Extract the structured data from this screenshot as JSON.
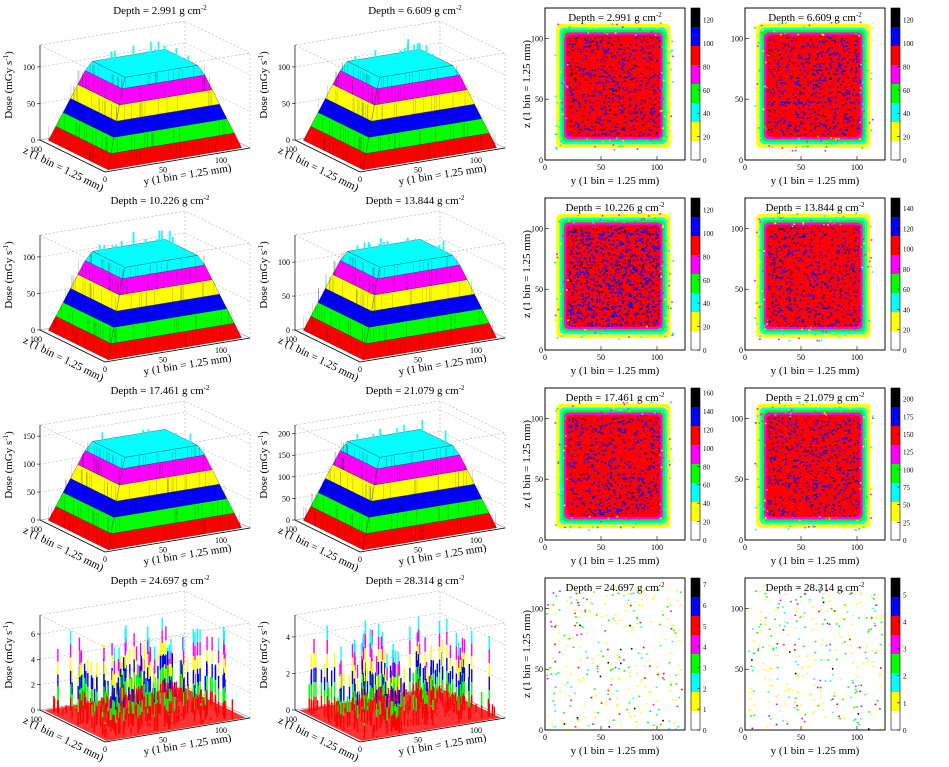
{
  "figure": {
    "palette": [
      "#ffffff",
      "#ffff00",
      "#00ffff",
      "#00ff00",
      "#ff00ff",
      "#ff0000",
      "#0000ff",
      "#000000"
    ],
    "lego_panels": [
      {
        "title": "Depth = 2.991 g cm",
        "title_exponent": "-2",
        "dose_label": "Dose (mGy s",
        "dose_exponent": "-1",
        "dose_label_end": ")",
        "dose_range": [
          0,
          130
        ],
        "dose_ticks": [
          0,
          50,
          100
        ],
        "z_label": "z (1 bin = 1.25 mm)",
        "z_ticks": [
          100
        ],
        "y_label": "y (1 bin = 1.25 mm)",
        "y_ticks": [
          0,
          50,
          100
        ]
      },
      {
        "title": "Depth = 6.609 g cm",
        "title_exponent": "-2",
        "dose_label": "Dose (mGy s",
        "dose_exponent": "-1",
        "dose_label_end": ")",
        "dose_range": [
          0,
          130
        ],
        "dose_ticks": [
          0,
          50,
          100
        ],
        "z_label": "z (1 bin = 1.25 mm)",
        "z_ticks": [
          100
        ],
        "y_label": "y (1 bin = 1.25 mm)",
        "y_ticks": [
          0,
          50,
          100
        ]
      },
      {
        "title": "Depth = 10.226 g cm",
        "title_exponent": "-2",
        "dose_label": "Dose (mGy s",
        "dose_exponent": "-1",
        "dose_label_end": ")",
        "dose_range": [
          0,
          130
        ],
        "dose_ticks": [
          0,
          50,
          100
        ],
        "z_label": "z (1 bin = 1.25 mm)",
        "z_ticks": [
          100
        ],
        "y_label": "y (1 bin = 1.25 mm)",
        "y_ticks": [
          0,
          50,
          100
        ]
      },
      {
        "title": "Depth = 13.844 g cm",
        "title_exponent": "-2",
        "dose_label": "Dose (mGy s",
        "dose_exponent": "-1",
        "dose_label_end": ")",
        "dose_range": [
          0,
          140
        ],
        "dose_ticks": [
          0,
          50,
          100
        ],
        "z_label": "z (1 bin = 1.25 mm)",
        "z_ticks": [
          100
        ],
        "y_label": "y (1 bin = 1.25 mm)",
        "y_ticks": [
          0,
          50,
          100
        ]
      },
      {
        "title": "Depth = 17.461 g cm",
        "title_exponent": "-2",
        "dose_label": "Dose (mGy s",
        "dose_exponent": "-1",
        "dose_label_end": ")",
        "dose_range": [
          0,
          170
        ],
        "dose_ticks": [
          0,
          50,
          100,
          150
        ],
        "z_label": "z (1 bin = 1.25 mm)",
        "z_ticks": [
          100
        ],
        "y_label": "y (1 bin = 1.25 mm)",
        "y_ticks": [
          0,
          50,
          100
        ]
      },
      {
        "title": "Depth = 21.079 g cm",
        "title_exponent": "-2",
        "dose_label": "Dose (mGy s",
        "dose_exponent": "-1",
        "dose_label_end": ")",
        "dose_range": [
          0,
          220
        ],
        "dose_ticks": [
          0,
          50,
          100,
          150,
          200
        ],
        "z_label": "z (1 bin = 1.25 mm)",
        "z_ticks": [
          100
        ],
        "y_label": "y (1 bin = 1.25 mm)",
        "y_ticks": [
          0,
          50,
          100
        ]
      },
      {
        "title": "Depth = 24.697 g cm",
        "title_exponent": "-2",
        "dose_label": "Dose (mGy s",
        "dose_exponent": "-1",
        "dose_label_end": ")",
        "dose_range": [
          0,
          7.5
        ],
        "dose_ticks": [
          0,
          2,
          4,
          6
        ],
        "z_label": "z (1 bin = 1.25 mm)",
        "z_ticks": [
          100
        ],
        "y_label": "y (1 bin = 1.25 mm)",
        "y_ticks": [
          0,
          50,
          100
        ]
      },
      {
        "title": "Depth = 28.314 g cm",
        "title_exponent": "-2",
        "dose_label": "Dose (mGy s",
        "dose_exponent": "-1",
        "dose_label_end": ")",
        "dose_range": [
          0,
          5.2
        ],
        "dose_ticks": [
          0,
          2,
          4
        ],
        "z_label": "z (1 bin = 1.25 mm)",
        "z_ticks": [
          100
        ],
        "y_label": "y (1 bin = 1.25 mm)",
        "y_ticks": [
          0,
          50,
          100
        ]
      }
    ],
    "map_panels": [
      {
        "title": "Depth = 2.991 g cm",
        "title_exponent": "-2",
        "x_label": "y (1 bin = 1.25 mm)",
        "y_label": "z (1 bin = 1.25 mm)",
        "axis_range": [
          0,
          125
        ],
        "x_ticks": [
          0,
          50,
          100
        ],
        "y_ticks": [
          0,
          50,
          100
        ],
        "color_range": [
          0,
          130
        ],
        "color_ticks": [
          0,
          20,
          40,
          60,
          80,
          100,
          120
        ]
      },
      {
        "title": "Depth = 6.609 g cm",
        "title_exponent": "-2",
        "x_label": "y (1 bin = 1.25 mm)",
        "axis_range": [
          0,
          125
        ],
        "x_ticks": [
          0,
          50,
          100
        ],
        "y_ticks": [
          0,
          50,
          100
        ],
        "color_range": [
          0,
          130
        ],
        "color_ticks": [
          0,
          20,
          40,
          60,
          80,
          100,
          120
        ]
      },
      {
        "title": "Depth = 10.226 g cm",
        "title_exponent": "-2",
        "x_label": "y (1 bin = 1.25 mm)",
        "y_label": "z (1 bin = 1.25 mm)",
        "axis_range": [
          0,
          125
        ],
        "x_ticks": [
          0,
          50,
          100
        ],
        "y_ticks": [
          0,
          50,
          100
        ],
        "color_range": [
          0,
          130
        ],
        "color_ticks": [
          0,
          20,
          40,
          60,
          80,
          100,
          120
        ]
      },
      {
        "title": "Depth = 13.844 g cm",
        "title_exponent": "-2",
        "x_label": "y (1 bin = 1.25 mm)",
        "axis_range": [
          0,
          125
        ],
        "x_ticks": [
          0,
          50,
          100
        ],
        "y_ticks": [
          0,
          50,
          100
        ],
        "color_range": [
          0,
          150
        ],
        "color_ticks": [
          0,
          20,
          40,
          60,
          80,
          100,
          120,
          140
        ]
      },
      {
        "title": "Depth = 17.461 g cm",
        "title_exponent": "-2",
        "x_label": "y (1 bin = 1.25 mm)",
        "y_label": "z (1 bin = 1.25 mm)",
        "axis_range": [
          0,
          125
        ],
        "x_ticks": [
          0,
          50,
          100
        ],
        "y_ticks": [
          0,
          50,
          100
        ],
        "color_range": [
          0,
          165
        ],
        "color_ticks": [
          0,
          20,
          40,
          60,
          80,
          100,
          120,
          140,
          160
        ]
      },
      {
        "title": "Depth = 21.079 g cm",
        "title_exponent": "-2",
        "x_label": "y (1 bin = 1.25 mm)",
        "axis_range": [
          0,
          125
        ],
        "x_ticks": [
          0,
          50,
          100
        ],
        "y_ticks": [
          0,
          50,
          100
        ],
        "color_range": [
          0,
          215
        ],
        "color_ticks": [
          0,
          25,
          50,
          75,
          100,
          125,
          150,
          175,
          200
        ]
      },
      {
        "title": "Depth = 24.697 g cm",
        "title_exponent": "-2",
        "x_label": "y (1 bin = 1.25 mm)",
        "y_label": "z (1 bin = 1.25 mm)",
        "axis_range": [
          0,
          125
        ],
        "x_ticks": [
          0,
          50,
          100
        ],
        "y_ticks": [
          0,
          50,
          100
        ],
        "color_range": [
          0,
          7.3
        ],
        "color_ticks": [
          0,
          1,
          2,
          3,
          4,
          5,
          6,
          7
        ]
      },
      {
        "title": "Depth = 28.314 g cm",
        "title_exponent": "-2",
        "x_label": "y (1 bin = 1.25 mm)",
        "axis_range": [
          0,
          125
        ],
        "x_ticks": [
          0,
          50,
          100
        ],
        "y_ticks": [
          0,
          50,
          100
        ],
        "color_range": [
          0,
          5.6
        ],
        "color_ticks": [
          0,
          1,
          2,
          3,
          4,
          5
        ]
      }
    ]
  }
}
